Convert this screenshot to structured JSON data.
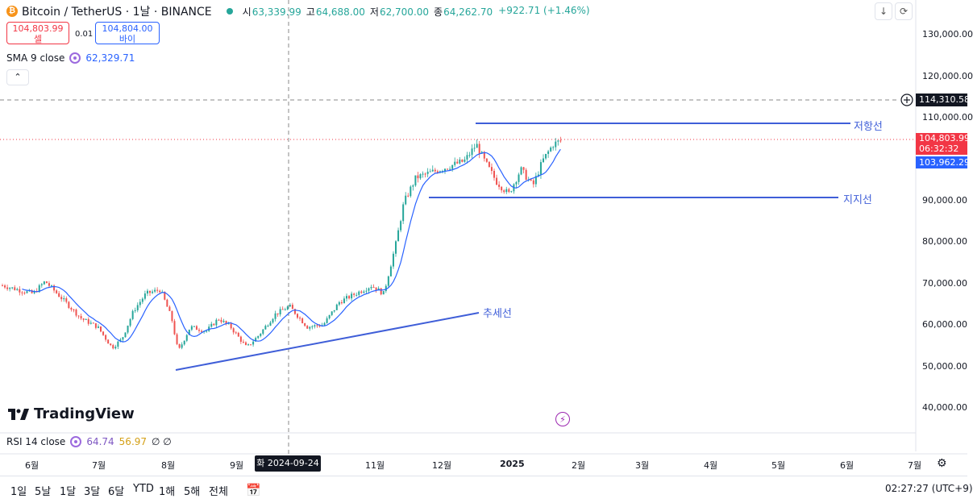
{
  "header": {
    "symbol": "Bitcoin / TetherUS · 1날 · BINANCE",
    "ohlc": [
      {
        "k": "시",
        "v": "63,339.99"
      },
      {
        "k": "고",
        "v": "64,688.00"
      },
      {
        "k": "저",
        "v": "62,700.00"
      },
      {
        "k": "종",
        "v": "64,262.70"
      }
    ],
    "change": "+922.71 (+1.46%)"
  },
  "trade": {
    "sell_price": "104,803.99",
    "sell_label": "셀",
    "spread": "0.01",
    "buy_price": "104,804.00",
    "buy_label": "바이"
  },
  "sma": {
    "label": "SMA 9 close",
    "value": "62,329.71"
  },
  "rsi": {
    "label": "RSI 14 close",
    "v1": "64.74",
    "v2": "56.97",
    "v3": "∅ ∅"
  },
  "price_axis": {
    "ticks": [
      "130,000.00",
      "120,000.00",
      "110,000.00",
      "90,000.00",
      "80,000.00",
      "70,000.00",
      "60,000.00",
      "50,000.00",
      "40,000.00"
    ],
    "crosshair_price": "114,310.58",
    "last_price": "104,803.99",
    "countdown": "06:32:32",
    "sma_price": "103,962.29"
  },
  "annotations": {
    "resistance": "저항선",
    "support": "지지선",
    "trend": "추세선"
  },
  "time_axis": {
    "months": [
      "6월",
      "7월",
      "8월",
      "9월",
      "11월",
      "12월",
      "2025",
      "2월",
      "3월",
      "4월",
      "5월",
      "6월",
      "7월"
    ],
    "crosshair_date": "화 2024-09-24"
  },
  "range_buttons": [
    "1일",
    "5날",
    "1달",
    "3달",
    "6달",
    "YTD",
    "1해",
    "5해",
    "전체"
  ],
  "clock": "02:27:27 (UTC+9)",
  "brand": "TradingView",
  "colors": {
    "up": "#26a69a",
    "down": "#ef5350",
    "sma": "#2962ff",
    "drawing": "#3f5ed8",
    "last": "#f23645"
  }
}
